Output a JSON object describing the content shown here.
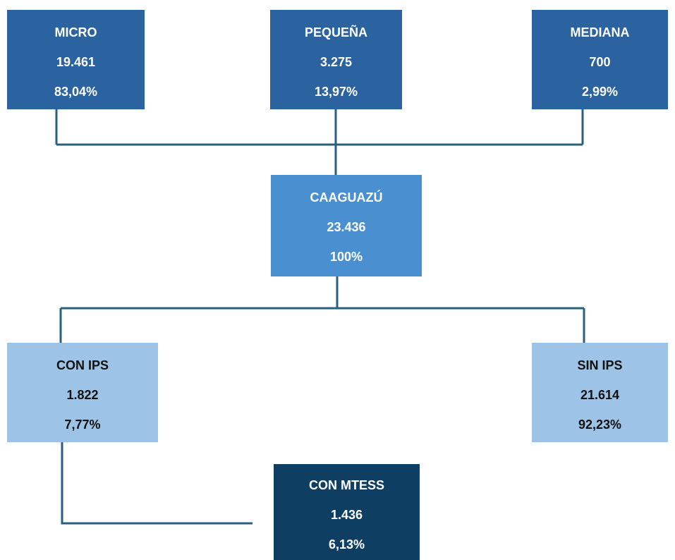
{
  "nodes": [
    {
      "label": "MICRO",
      "count": "19.461",
      "percent": "83,04%"
    },
    {
      "label": "PEQUEÑA",
      "count": "3.275",
      "percent": "13,97%"
    },
    {
      "label": "MEDIANA",
      "count": "700",
      "percent": "2,99%"
    },
    {
      "label": "CAAGUAZÚ",
      "count": "23.436",
      "percent": "100%"
    },
    {
      "label": "CON IPS",
      "count": "1.822",
      "percent": "7,77%"
    },
    {
      "label": "SIN IPS",
      "count": "21.614",
      "percent": "92,23%"
    },
    {
      "label": "CON MTESS",
      "count": "1.436",
      "percent": "6,13%"
    }
  ]
}
